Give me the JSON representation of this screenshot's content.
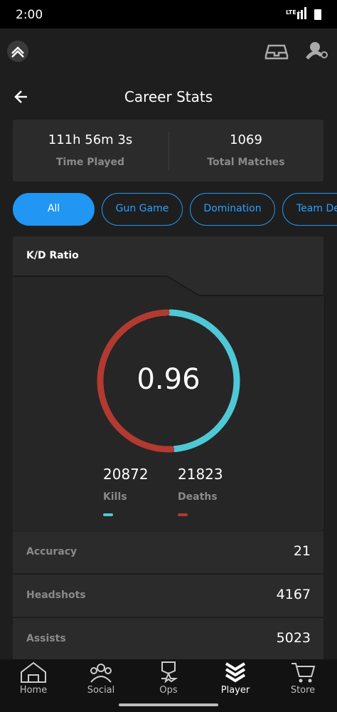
{
  "status_bar": {
    "time": "2:00",
    "network": "LTE+"
  },
  "header": {
    "title": "Career Stats"
  },
  "summary": [
    {
      "value": "111h 56m 3s",
      "label": "Time Played"
    },
    {
      "value": "1069",
      "label": "Total Matches"
    }
  ],
  "tabs": [
    "All",
    "Gun Game",
    "Domination",
    "Team De"
  ],
  "kd": {
    "title": "K/D Ratio",
    "ratio": "0.96",
    "kills": 20872,
    "kills_label": "Kills",
    "deaths": 21823,
    "deaths_label": "Deaths"
  },
  "stats": [
    {
      "label": "Accuracy",
      "value": "21"
    },
    {
      "label": "Headshots",
      "value": "4167"
    },
    {
      "label": "Assists",
      "value": "5023"
    }
  ],
  "nav": [
    "Home",
    "Social",
    "Ops",
    "Player",
    "Store"
  ]
}
